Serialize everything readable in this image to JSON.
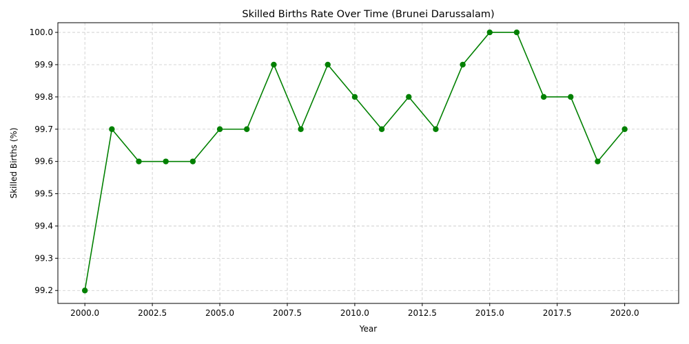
{
  "chart_data": {
    "type": "line",
    "title": "Skilled Births Rate Over Time (Brunei Darussalam)",
    "xlabel": "Year",
    "ylabel": "Skilled Births (%)",
    "xlim": [
      1999,
      2022
    ],
    "ylim": [
      99.16,
      100.03
    ],
    "xticks": [
      2000,
      2002.5,
      2005,
      2007.5,
      2010,
      2012.5,
      2015,
      2017.5,
      2020
    ],
    "xtick_labels": [
      "2000.0",
      "2002.5",
      "2005.0",
      "2007.5",
      "2010.0",
      "2012.5",
      "2015.0",
      "2017.5",
      "2020.0"
    ],
    "yticks": [
      99.2,
      99.3,
      99.4,
      99.5,
      99.6,
      99.7,
      99.8,
      99.9,
      100.0
    ],
    "ytick_labels": [
      "99.2",
      "99.3",
      "99.4",
      "99.5",
      "99.6",
      "99.7",
      "99.8",
      "99.9",
      "100.0"
    ],
    "grid": true,
    "legend": "none",
    "series": [
      {
        "color": "#008000",
        "marker": "circle",
        "x": [
          2000,
          2001,
          2002,
          2003,
          2004,
          2005,
          2006,
          2007,
          2008,
          2009,
          2010,
          2011,
          2012,
          2013,
          2014,
          2015,
          2016,
          2017,
          2018,
          2019,
          2020
        ],
        "y": [
          99.2,
          99.7,
          99.6,
          99.6,
          99.6,
          99.7,
          99.7,
          99.9,
          99.7,
          99.9,
          99.8,
          99.7,
          99.8,
          99.7,
          99.9,
          100.0,
          100.0,
          99.8,
          99.8,
          99.6,
          99.7
        ]
      }
    ]
  }
}
